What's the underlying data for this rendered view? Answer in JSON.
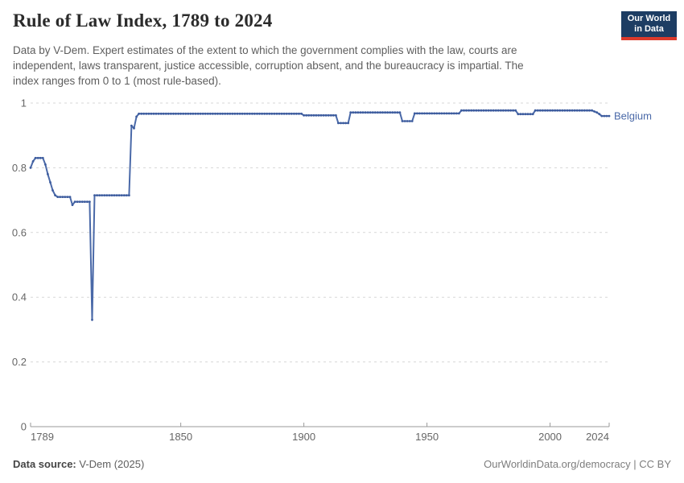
{
  "header": {
    "title": "Rule of Law Index, 1789 to 2024",
    "subtitle_lines": [
      "Data by V-Dem. Expert estimates of the extent to which the government complies with the law, courts are",
      "independent, laws transparent, justice accessible, corruption absent, and the bureaucracy is impartial. The",
      "index ranges from 0 to 1 (most rule-based)."
    ],
    "logo": {
      "line1": "Our World",
      "line2": "in Data",
      "bg_color": "#1d3d63",
      "stripe_color": "#dc3a2b"
    }
  },
  "chart_data": {
    "type": "line",
    "title": "Rule of Law Index, 1789 to 2024",
    "entity_label": "Belgium",
    "line_color": "#4a69a8",
    "marker_color": "#3d5c9e",
    "grid_color": "#d7d7d7",
    "axis_color": "#9a9a9a",
    "tick_text_color": "#666666",
    "x": {
      "min": 1789,
      "max": 2024,
      "ticks": [
        1789,
        1850,
        1900,
        1950,
        2000,
        2024
      ],
      "tick_labels": [
        "1789",
        "1850",
        "1900",
        "1950",
        "2000",
        "2024"
      ]
    },
    "y": {
      "min": 0,
      "max": 1,
      "ticks": [
        0,
        0.2,
        0.4,
        0.6,
        0.8,
        1
      ],
      "tick_labels": [
        "0",
        "0.2",
        "0.4",
        "0.6",
        "0.8",
        "1"
      ]
    },
    "grid": "horizontal-dashed",
    "legend_position": "end-of-line",
    "series": [
      {
        "name": "Belgium",
        "note": "runs encoded as [start_year, end_year, value], one data point per year",
        "runs": [
          [
            1789,
            1789,
            0.8
          ],
          [
            1790,
            1790,
            0.82
          ],
          [
            1791,
            1794,
            0.83
          ],
          [
            1795,
            1795,
            0.81
          ],
          [
            1796,
            1796,
            0.78
          ],
          [
            1797,
            1797,
            0.755
          ],
          [
            1798,
            1798,
            0.73
          ],
          [
            1799,
            1799,
            0.715
          ],
          [
            1800,
            1805,
            0.71
          ],
          [
            1806,
            1806,
            0.685
          ],
          [
            1807,
            1813,
            0.695
          ],
          [
            1814,
            1814,
            0.33
          ],
          [
            1815,
            1829,
            0.715
          ],
          [
            1830,
            1830,
            0.93
          ],
          [
            1831,
            1831,
            0.922
          ],
          [
            1832,
            1832,
            0.958
          ],
          [
            1833,
            1899,
            0.967
          ],
          [
            1900,
            1913,
            0.962
          ],
          [
            1914,
            1918,
            0.938
          ],
          [
            1919,
            1939,
            0.971
          ],
          [
            1940,
            1944,
            0.944
          ],
          [
            1945,
            1963,
            0.968
          ],
          [
            1964,
            1986,
            0.977
          ],
          [
            1987,
            1993,
            0.966
          ],
          [
            1994,
            2017,
            0.977
          ],
          [
            2018,
            2018,
            0.974
          ],
          [
            2019,
            2019,
            0.971
          ],
          [
            2020,
            2020,
            0.966
          ],
          [
            2021,
            2024,
            0.96
          ]
        ]
      }
    ]
  },
  "footer": {
    "source_label": "Data source:",
    "source_value": " V-Dem (2025)",
    "attribution": "OurWorldinData.org/democracy | CC BY"
  }
}
